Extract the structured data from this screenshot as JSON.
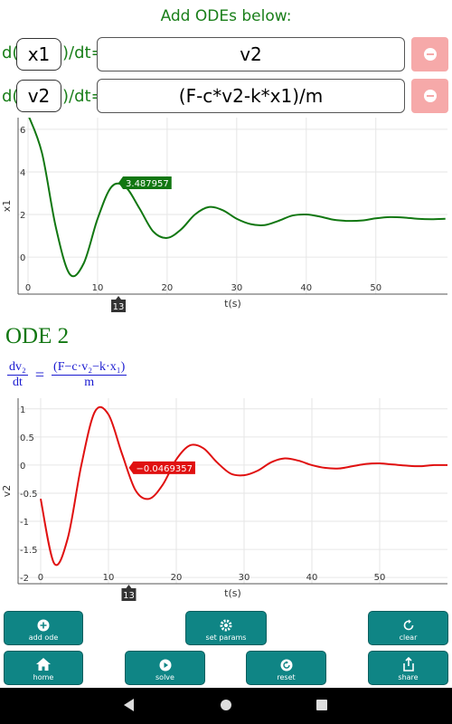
{
  "header": {
    "title": "Add ODEs below:"
  },
  "odes": [
    {
      "prefix": "d(",
      "variable": "x1",
      "suffix": ")/dt=",
      "expression": "v2"
    },
    {
      "prefix": "d(",
      "variable": "v2",
      "suffix": ")/dt=",
      "expression": "(F-c*v2-k*x1)/m"
    }
  ],
  "chart_data": [
    {
      "type": "line",
      "x_label": "t(s)",
      "y_label": "x1",
      "x": [
        0,
        2,
        4,
        6,
        8,
        10,
        12,
        14,
        16,
        18,
        20,
        22,
        24,
        26,
        28,
        30,
        32,
        34,
        36,
        38,
        40,
        42,
        44,
        46,
        48,
        50,
        52,
        54,
        56,
        58,
        60
      ],
      "values": [
        6.7,
        4.9,
        1.4,
        -0.8,
        -0.3,
        1.8,
        3.3,
        3.3,
        2.3,
        1.2,
        0.9,
        1.3,
        2.0,
        2.35,
        2.2,
        1.8,
        1.55,
        1.5,
        1.7,
        1.95,
        2.0,
        1.9,
        1.75,
        1.7,
        1.72,
        1.82,
        1.88,
        1.86,
        1.8,
        1.78,
        1.8
      ],
      "color": "#117711",
      "xlim": [
        -1.43,
        60.3
      ],
      "ylim": [
        -1.74,
        6.55
      ],
      "xticks": [
        0,
        10,
        20,
        30,
        40,
        50
      ],
      "yticks": [
        0,
        2,
        4,
        6
      ],
      "grid": true,
      "cursor_x": 13,
      "marker": {
        "x": 13,
        "y": 3.487957
      }
    },
    {
      "type": "line",
      "x_label": "t(s)",
      "y_label": "v2",
      "x": [
        0,
        2,
        4,
        6,
        8,
        10,
        12,
        14,
        16,
        18,
        20,
        22,
        24,
        26,
        28,
        30,
        32,
        34,
        36,
        38,
        40,
        42,
        44,
        46,
        48,
        50,
        52,
        54,
        56,
        58,
        60
      ],
      "values": [
        -0.6,
        -1.75,
        -1.3,
        0.0,
        0.95,
        0.9,
        0.2,
        -0.45,
        -0.6,
        -0.35,
        0.1,
        0.35,
        0.3,
        0.05,
        -0.15,
        -0.18,
        -0.1,
        0.05,
        0.12,
        0.08,
        0.0,
        -0.05,
        -0.06,
        -0.02,
        0.02,
        0.03,
        0.01,
        -0.01,
        -0.02,
        0.0,
        0.0
      ],
      "color": "#e01010",
      "xlim": [
        -3.33,
        60
      ],
      "ylim": [
        -2.11,
        1.19
      ],
      "xticks": [
        0,
        10,
        20,
        30,
        40,
        50
      ],
      "yticks": [
        -2,
        -1.5,
        -1,
        -0.5,
        0,
        0.5,
        1
      ],
      "grid": true,
      "cursor_x": 13,
      "marker": {
        "x": 13,
        "y": -0.0469357,
        "label": "−0.0469357"
      }
    }
  ],
  "section": {
    "title": "ODE 2"
  },
  "formula": {
    "lhs_top": "dv₂",
    "lhs_bottom": "dt",
    "equals": "=",
    "rhs_top": "(F−c·v₂−k·x₁)",
    "rhs_bottom": "m"
  },
  "buttons": [
    "add ode",
    "set params",
    "clear",
    "home",
    "solve",
    "reset",
    "share"
  ]
}
